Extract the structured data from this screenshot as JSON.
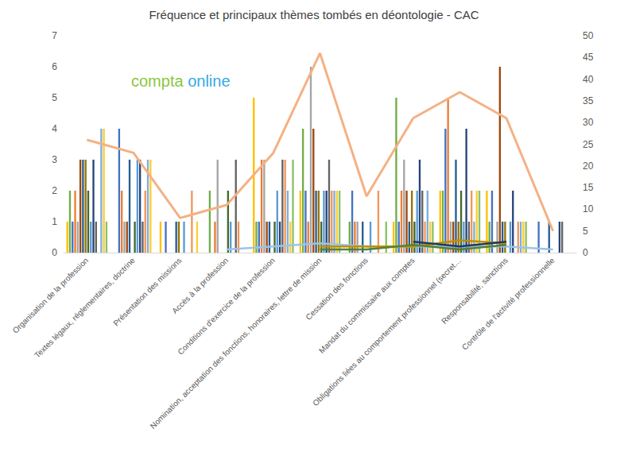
{
  "chart_data": {
    "type": "bar",
    "title": "Fréquence et principaux thèmes tombés en déontologie - CAC",
    "annotations": [
      "compta",
      "online"
    ],
    "categories": [
      "Organisation de la profession",
      "Textes légaux, réglementaires, doctrine",
      "Présentation des missions",
      "Accès à la profession",
      "Conditions d'exercice de la profession",
      "Nomination, acceptation des fonctions, honoraires, lettre de mission",
      "Cessation des fonctions",
      "Mandat du commissaire aux comptes",
      "Obligations liées au comportement professionnel (secret…",
      "Responsabilité, sanctions",
      "Contrôle de l'activité professionnelle"
    ],
    "ylim": [
      0,
      7
    ],
    "yticks": [
      0,
      1,
      2,
      3,
      4,
      5,
      6,
      7
    ],
    "y2lim": [
      0,
      50
    ],
    "y2ticks": [
      0,
      5,
      10,
      15,
      20,
      25,
      30,
      35,
      40,
      45,
      50
    ],
    "grid": false,
    "series": [
      {
        "type": "bar",
        "color": "#FFC000",
        "values": [
          1,
          0,
          1,
          0,
          5,
          2,
          0,
          1,
          2,
          2,
          0
        ]
      },
      {
        "type": "bar",
        "color": "#70AD47",
        "values": [
          2,
          0,
          0,
          2,
          1,
          4,
          1,
          5,
          2,
          1,
          0
        ]
      },
      {
        "type": "bar",
        "color": "#4472C4",
        "values": [
          1,
          4,
          1,
          0,
          1,
          2,
          2,
          1,
          4,
          2,
          1
        ]
      },
      {
        "type": "bar",
        "color": "#ED7D31",
        "values": [
          2,
          2,
          0,
          1,
          3,
          1,
          1,
          2,
          5,
          0,
          0
        ]
      },
      {
        "type": "bar",
        "color": "#A5A5A5",
        "values": [
          1,
          1,
          0,
          3,
          3,
          6,
          1,
          3,
          1,
          1,
          0
        ]
      },
      {
        "type": "bar",
        "color": "#9E480E",
        "values": [
          3,
          1,
          0,
          0,
          1,
          4,
          0,
          2,
          1,
          6,
          0
        ]
      },
      {
        "type": "bar",
        "color": "#255E91",
        "values": [
          3,
          3,
          1,
          0,
          1,
          2,
          1,
          1,
          3,
          1,
          1
        ]
      },
      {
        "type": "bar",
        "color": "#997300",
        "values": [
          3,
          0,
          1,
          0,
          0,
          2,
          0,
          2,
          1,
          1,
          0
        ]
      },
      {
        "type": "bar",
        "color": "#43682B",
        "values": [
          2,
          1,
          0,
          2,
          1,
          1,
          0,
          1,
          2,
          0,
          0
        ]
      },
      {
        "type": "bar",
        "color": "#5B9BD5",
        "values": [
          1,
          3,
          1,
          1,
          2,
          2,
          1,
          2,
          1,
          1,
          0
        ]
      },
      {
        "type": "bar",
        "color": "#264478",
        "values": [
          3,
          3,
          0,
          0,
          1,
          2,
          0,
          3,
          4,
          2,
          1
        ]
      },
      {
        "type": "bar",
        "color": "#636363",
        "values": [
          1,
          1,
          0,
          3,
          3,
          3,
          0,
          2,
          1,
          0,
          1
        ]
      },
      {
        "type": "bar",
        "color": "#F1975A",
        "values": [
          0,
          2,
          2,
          1,
          3,
          2,
          2,
          1,
          2,
          1,
          0
        ]
      },
      {
        "type": "bar",
        "color": "#7CAFDD",
        "values": [
          4,
          3,
          0,
          0,
          2,
          2,
          0,
          2,
          1,
          1,
          0
        ]
      },
      {
        "type": "bar",
        "color": "#FFCD33",
        "values": [
          4,
          3,
          1,
          0,
          1,
          2,
          0,
          1,
          2,
          1,
          0
        ]
      },
      {
        "type": "bar",
        "color": "#8CC168",
        "values": [
          1,
          0,
          0,
          0,
          3,
          2,
          1,
          1,
          2,
          1,
          0
        ]
      },
      {
        "type": "line",
        "color": "#9DC3E6",
        "values": [
          null,
          null,
          null,
          0.1,
          0.2,
          0.3,
          0.2,
          0.2,
          0.2,
          0.2,
          0.1
        ]
      },
      {
        "type": "line",
        "color": "#BF9000",
        "values": [
          null,
          null,
          null,
          null,
          null,
          0.2,
          0.2,
          0.2,
          0.4,
          0.3,
          null
        ]
      },
      {
        "type": "line",
        "color": "#548235",
        "values": [
          null,
          null,
          null,
          null,
          null,
          0.1,
          0.1,
          0.25,
          0.1,
          0.25,
          null
        ]
      },
      {
        "type": "line",
        "color": "#203864",
        "values": [
          null,
          null,
          null,
          null,
          null,
          null,
          null,
          0.35,
          0.2,
          0.35,
          null
        ]
      },
      {
        "type": "line",
        "axis": "y2",
        "color": "#F4B183",
        "values": [
          26,
          23,
          8,
          11,
          23,
          46,
          13,
          31,
          37,
          31,
          5
        ]
      }
    ]
  }
}
